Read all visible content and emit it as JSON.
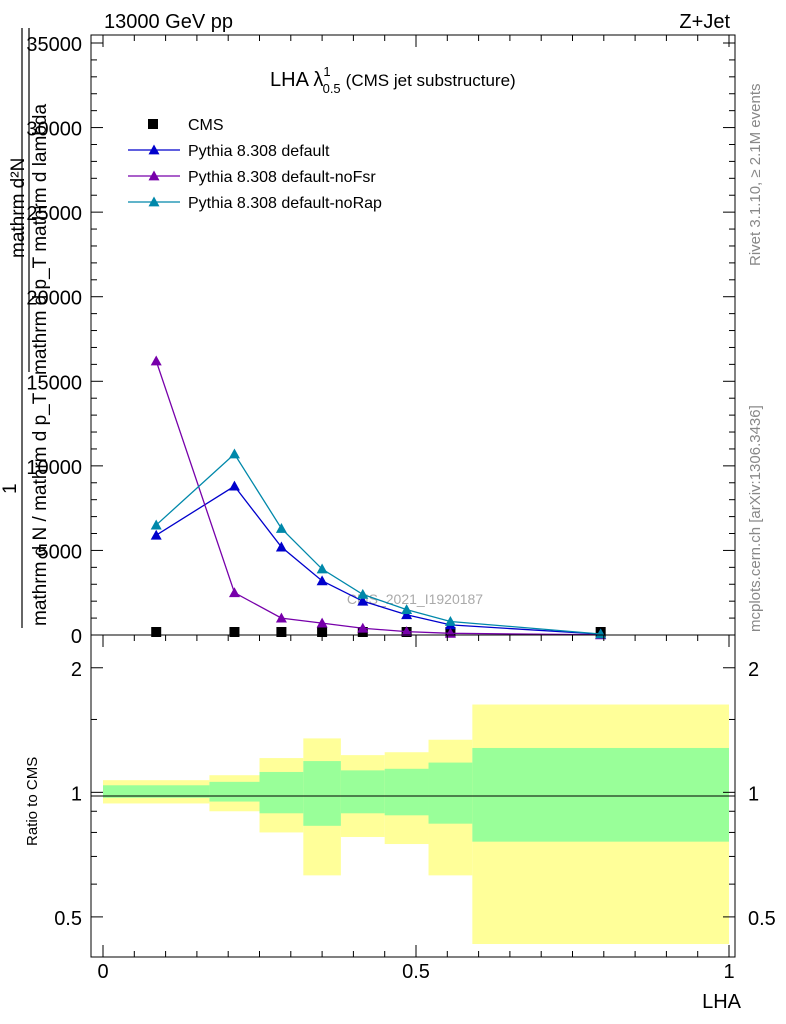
{
  "header": {
    "energy_label": "13000 GeV pp",
    "process_label": "Z+Jet"
  },
  "side_labels": {
    "rivet": "Rivet 3.1.10, ≥ 2.1M events",
    "mcplots": "mcplots.cern.ch [arXiv:1306.3436]"
  },
  "main_panel": {
    "title_main": "LHA λ",
    "title_sup": "1",
    "title_sub": "0.5",
    "title_paren": "(CMS jet substructure)",
    "analysis_id": "CMS_2021_I1920187",
    "ylabel_line1": "mathrm d²N",
    "ylabel_line2": "mathrm d p_T mathrm d lambda",
    "ylabel_prefix": "1",
    "ylabel_line3": "mathrm d N / mathrm d p_T",
    "yticks": [
      "0",
      "5000",
      "10000",
      "15000",
      "20000",
      "25000",
      "30000",
      "35000"
    ]
  },
  "ratio_panel": {
    "ylabel": "Ratio to CMS",
    "yticks": [
      "0.5",
      "1",
      "2"
    ]
  },
  "x_axis": {
    "label": "LHA",
    "ticks": [
      "0",
      "0.5",
      "1"
    ]
  },
  "legend": [
    {
      "name": "CMS",
      "color": "#000000",
      "marker": "square"
    },
    {
      "name": "Pythia 8.308 default",
      "color": "#0000cc",
      "marker": "triangle"
    },
    {
      "name": "Pythia 8.308 default-noFsr",
      "color": "#7700aa",
      "marker": "triangle"
    },
    {
      "name": "Pythia 8.308 default-noRap",
      "color": "#0088aa",
      "marker": "triangle"
    }
  ],
  "chart_data": {
    "type": "line",
    "title": "LHA λ^1_0.5 (CMS jet substructure)",
    "xlabel": "LHA",
    "ylabel": "1/(mathrm d N / mathrm d p_T) mathrm d²N / mathrm d p_T mathrm d lambda",
    "xlim": [
      0,
      1
    ],
    "ylim": [
      0,
      35000
    ],
    "x": [
      0.085,
      0.21,
      0.285,
      0.35,
      0.415,
      0.485,
      0.555,
      0.795
    ],
    "series": [
      {
        "name": "CMS",
        "color": "#000000",
        "values": [
          80,
          80,
          80,
          80,
          80,
          80,
          80,
          80
        ]
      },
      {
        "name": "Pythia 8.308 default",
        "color": "#0000cc",
        "values": [
          5900,
          8800,
          5200,
          3200,
          2000,
          1200,
          600,
          50
        ]
      },
      {
        "name": "Pythia 8.308 default-noFsr",
        "color": "#7700aa",
        "values": [
          16200,
          2500,
          1000,
          700,
          400,
          200,
          100,
          10
        ]
      },
      {
        "name": "Pythia 8.308 default-noRap",
        "color": "#0088aa",
        "values": [
          6500,
          10700,
          6300,
          3900,
          2400,
          1500,
          800,
          60
        ]
      }
    ],
    "ratio": {
      "ylabel": "Ratio to CMS",
      "ylim": [
        0.4,
        2.4
      ],
      "scale": "log",
      "bins": [
        {
          "xlo": 0.0,
          "xhi": 0.17,
          "stat": [
            0.97,
            1.04
          ],
          "total": [
            0.94,
            1.07
          ]
        },
        {
          "xlo": 0.17,
          "xhi": 0.25,
          "stat": [
            0.95,
            1.06
          ],
          "total": [
            0.9,
            1.1
          ]
        },
        {
          "xlo": 0.25,
          "xhi": 0.32,
          "stat": [
            0.89,
            1.12
          ],
          "total": [
            0.8,
            1.21
          ]
        },
        {
          "xlo": 0.32,
          "xhi": 0.38,
          "stat": [
            0.83,
            1.19
          ],
          "total": [
            0.63,
            1.35
          ]
        },
        {
          "xlo": 0.38,
          "xhi": 0.45,
          "stat": [
            0.89,
            1.13
          ],
          "total": [
            0.78,
            1.23
          ]
        },
        {
          "xlo": 0.45,
          "xhi": 0.52,
          "stat": [
            0.88,
            1.14
          ],
          "total": [
            0.75,
            1.25
          ]
        },
        {
          "xlo": 0.52,
          "xhi": 0.59,
          "stat": [
            0.84,
            1.18
          ],
          "total": [
            0.63,
            1.34
          ]
        },
        {
          "xlo": 0.59,
          "xhi": 1.0,
          "stat": [
            0.76,
            1.28
          ],
          "total": [
            0.43,
            1.63
          ]
        }
      ]
    }
  }
}
